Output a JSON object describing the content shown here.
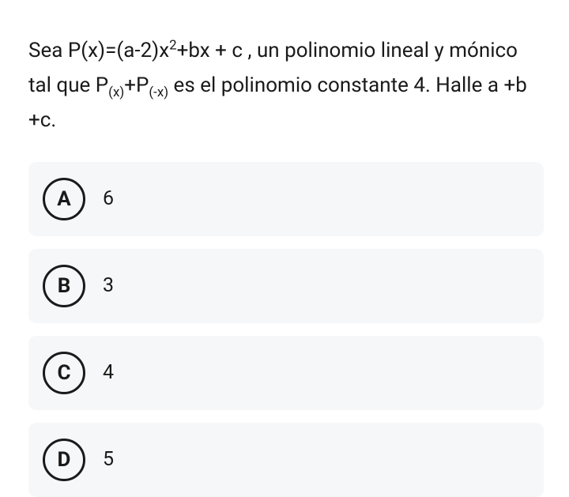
{
  "question": {
    "text_html": "Sea P(x)=(a-2)x<sup>2</sup>+bx + c , un polinomio lineal y mónico tal que P<sub>(x)</sub>+P<sub>(-x)</sub> es el polinomio constante 4. Halle a +b +c."
  },
  "options": [
    {
      "letter": "A",
      "text": "6"
    },
    {
      "letter": "B",
      "text": "3"
    },
    {
      "letter": "C",
      "text": "4"
    },
    {
      "letter": "D",
      "text": "5"
    }
  ],
  "styles": {
    "background": "#ffffff",
    "option_bg": "#f6f7f8",
    "text_color": "#1a1a1a",
    "circle_border": "#1a1a1a",
    "question_fontsize": 26,
    "option_fontsize": 25,
    "letter_fontsize": 26
  }
}
